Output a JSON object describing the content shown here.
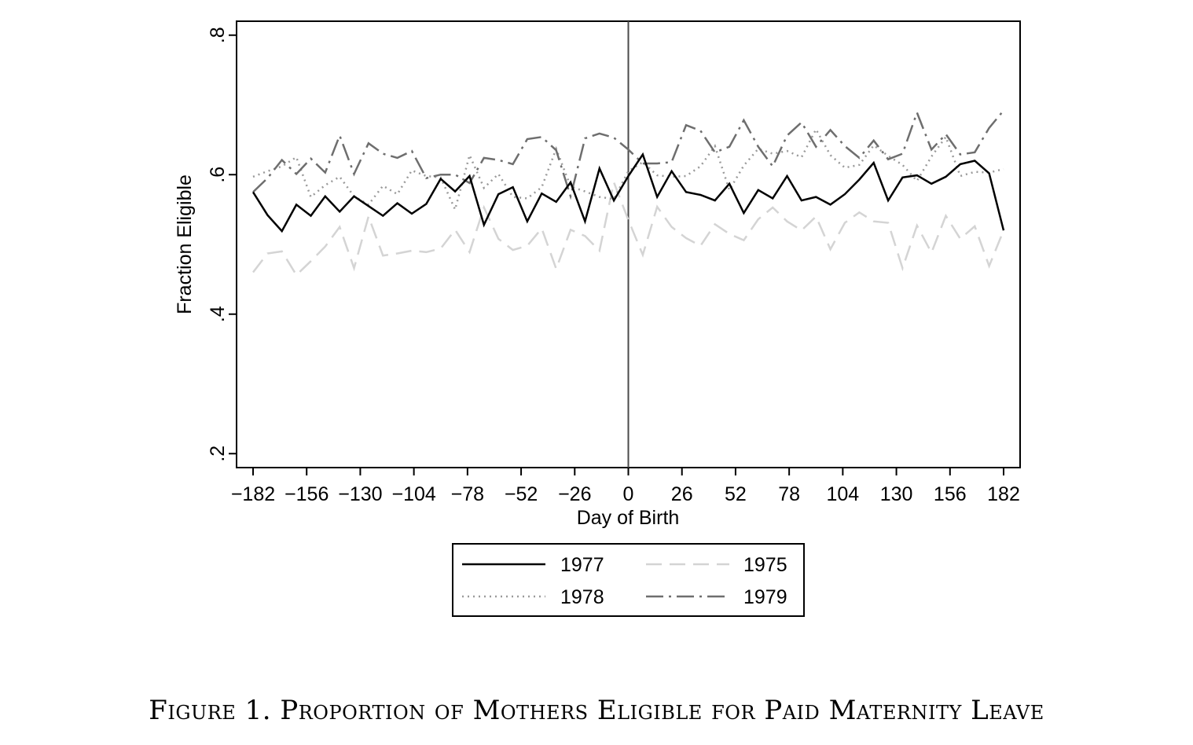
{
  "caption": "Figure 1. Proportion of Mothers Eligible for Paid Maternity Leave",
  "chart_data": {
    "type": "line",
    "title": "",
    "xlabel": "Day of Birth",
    "ylabel": "Fraction Eligible",
    "xlim": [
      -190,
      190
    ],
    "ylim": [
      0.18,
      0.82
    ],
    "xticks": [
      -182,
      -156,
      -130,
      -104,
      -78,
      -52,
      -26,
      0,
      26,
      52,
      78,
      104,
      130,
      156,
      182
    ],
    "xtick_labels": [
      "−182",
      "−156",
      "−130",
      "−104",
      "−78",
      "−52",
      "−26",
      "0",
      "26",
      "52",
      "78",
      "104",
      "130",
      "156",
      "182"
    ],
    "yticks": [
      0.2,
      0.4,
      0.6,
      0.8
    ],
    "ytick_labels": [
      ".2",
      ".4",
      ".6",
      ".8"
    ],
    "grid": false,
    "reference_line_x": 0,
    "legend_position": "bottom",
    "x": [
      -182,
      -175,
      -168,
      -161,
      -154,
      -147,
      -140,
      -133,
      -126,
      -119,
      -112,
      -105,
      -98,
      -91,
      -84,
      -77,
      -70,
      -63,
      -56,
      -49,
      -42,
      -35,
      -28,
      -21,
      -14,
      -7,
      0,
      7,
      14,
      21,
      28,
      35,
      42,
      49,
      56,
      63,
      70,
      77,
      84,
      91,
      98,
      105,
      112,
      119,
      126,
      133,
      140,
      147,
      154,
      161,
      168,
      175,
      182
    ],
    "series": [
      {
        "name": "1977",
        "color": "#000000",
        "dash": "solid",
        "values": [
          0.575,
          0.542,
          0.519,
          0.557,
          0.541,
          0.569,
          0.547,
          0.569,
          0.555,
          0.541,
          0.559,
          0.544,
          0.558,
          0.594,
          0.576,
          0.598,
          0.528,
          0.572,
          0.582,
          0.533,
          0.573,
          0.561,
          0.589,
          0.533,
          0.609,
          0.563,
          0.598,
          0.629,
          0.568,
          0.605,
          0.575,
          0.571,
          0.563,
          0.587,
          0.545,
          0.578,
          0.566,
          0.598,
          0.563,
          0.568,
          0.557,
          0.572,
          0.593,
          0.617,
          0.563,
          0.596,
          0.599,
          0.587,
          0.597,
          0.615,
          0.62,
          0.602,
          0.52
        ]
      },
      {
        "name": "1975",
        "color": "#d4d4d4",
        "dash": "long-dash",
        "values": [
          0.46,
          0.487,
          0.49,
          0.456,
          0.476,
          0.497,
          0.525,
          0.466,
          0.54,
          0.484,
          0.487,
          0.491,
          0.489,
          0.494,
          0.521,
          0.489,
          0.553,
          0.508,
          0.492,
          0.498,
          0.523,
          0.465,
          0.521,
          0.512,
          0.491,
          0.589,
          0.535,
          0.485,
          0.554,
          0.525,
          0.509,
          0.498,
          0.529,
          0.515,
          0.506,
          0.536,
          0.553,
          0.533,
          0.52,
          0.54,
          0.493,
          0.531,
          0.546,
          0.533,
          0.531,
          0.466,
          0.527,
          0.488,
          0.541,
          0.508,
          0.526,
          0.469,
          0.52
        ]
      },
      {
        "name": "1978",
        "color": "#9a9a9a",
        "dash": "dot",
        "values": [
          0.597,
          0.605,
          0.612,
          0.625,
          0.568,
          0.585,
          0.597,
          0.569,
          0.557,
          0.584,
          0.572,
          0.606,
          0.598,
          0.596,
          0.55,
          0.628,
          0.581,
          0.601,
          0.568,
          0.566,
          0.582,
          0.637,
          0.583,
          0.576,
          0.568,
          0.565,
          0.605,
          0.618,
          0.599,
          0.597,
          0.598,
          0.612,
          0.641,
          0.578,
          0.613,
          0.637,
          0.63,
          0.634,
          0.625,
          0.665,
          0.628,
          0.61,
          0.614,
          0.642,
          0.627,
          0.614,
          0.591,
          0.626,
          0.654,
          0.598,
          0.604,
          0.603,
          0.608
        ]
      },
      {
        "name": "1979",
        "color": "#6e6e6e",
        "dash": "long-dash-dot",
        "values": [
          0.575,
          0.595,
          0.621,
          0.601,
          0.623,
          0.603,
          0.656,
          0.601,
          0.645,
          0.63,
          0.624,
          0.634,
          0.595,
          0.6,
          0.6,
          0.588,
          0.624,
          0.621,
          0.615,
          0.651,
          0.654,
          0.635,
          0.569,
          0.652,
          0.659,
          0.653,
          0.636,
          0.616,
          0.616,
          0.618,
          0.671,
          0.663,
          0.632,
          0.64,
          0.678,
          0.64,
          0.612,
          0.656,
          0.675,
          0.64,
          0.664,
          0.641,
          0.624,
          0.649,
          0.622,
          0.63,
          0.689,
          0.636,
          0.658,
          0.629,
          0.632,
          0.667,
          0.692
        ]
      }
    ]
  }
}
